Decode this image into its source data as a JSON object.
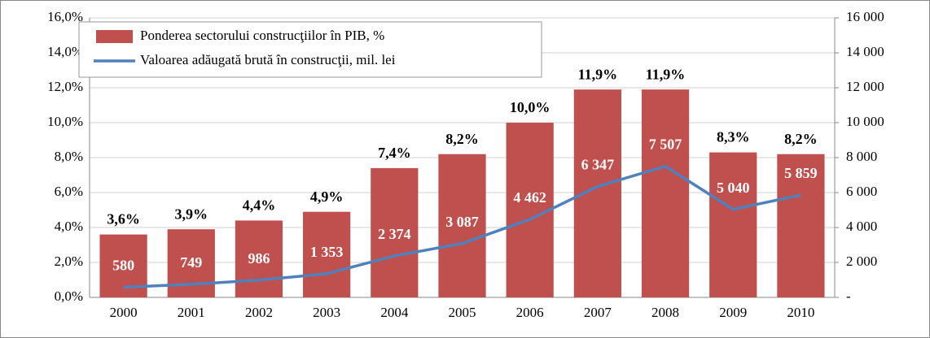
{
  "chart_data": {
    "type": "bar",
    "categories": [
      "2000",
      "2001",
      "2002",
      "2003",
      "2004",
      "2005",
      "2006",
      "2007",
      "2008",
      "2009",
      "2010"
    ],
    "series": [
      {
        "name": "Ponderea sectorului construcţiilor în PIB, %",
        "type": "bar",
        "color": "#c0504d",
        "values": [
          3.6,
          3.9,
          4.4,
          4.9,
          7.4,
          8.2,
          10.0,
          11.9,
          11.9,
          8.3,
          8.2
        ],
        "value_labels": [
          "3,6%",
          "3,9%",
          "4,4%",
          "4,9%",
          "7,4%",
          "8,2%",
          "10,0%",
          "11,9%",
          "11,9%",
          "8,3%",
          "8,2%"
        ]
      },
      {
        "name": "Valoarea adăugată brută în construcţii, mil. lei",
        "type": "line",
        "axis": "y2",
        "color": "#4f81bd",
        "values": [
          580,
          749,
          986,
          1353,
          2374,
          3087,
          4462,
          6347,
          7507,
          5040,
          5859
        ],
        "value_labels": [
          "580",
          "749",
          "986",
          "1 353",
          "2 374",
          "3 087",
          "4 462",
          "6 347",
          "7 507",
          "5 040",
          "5 859"
        ]
      }
    ],
    "ylim": [
      0,
      16
    ],
    "yticks": [
      {
        "value": 0,
        "label": "0,0%"
      },
      {
        "value": 2,
        "label": "2,0%"
      },
      {
        "value": 4,
        "label": "4,0%"
      },
      {
        "value": 6,
        "label": "6,0%"
      },
      {
        "value": 8,
        "label": "8,0%"
      },
      {
        "value": 10,
        "label": "10,0%"
      },
      {
        "value": 12,
        "label": "12,0%"
      },
      {
        "value": 14,
        "label": "14,0%"
      },
      {
        "value": 16,
        "label": "16,0%"
      }
    ],
    "y2lim": [
      0,
      16000
    ],
    "y2ticks": [
      {
        "value": 0,
        "label": "-"
      },
      {
        "value": 2000,
        "label": "2 000"
      },
      {
        "value": 4000,
        "label": "4 000"
      },
      {
        "value": 6000,
        "label": "6 000"
      },
      {
        "value": 8000,
        "label": "8 000"
      },
      {
        "value": 10000,
        "label": "10 000"
      },
      {
        "value": 12000,
        "label": "12 000"
      },
      {
        "value": 14000,
        "label": "14 000"
      },
      {
        "value": 16000,
        "label": "16 000"
      }
    ],
    "grid": true,
    "legend": "top-left"
  }
}
